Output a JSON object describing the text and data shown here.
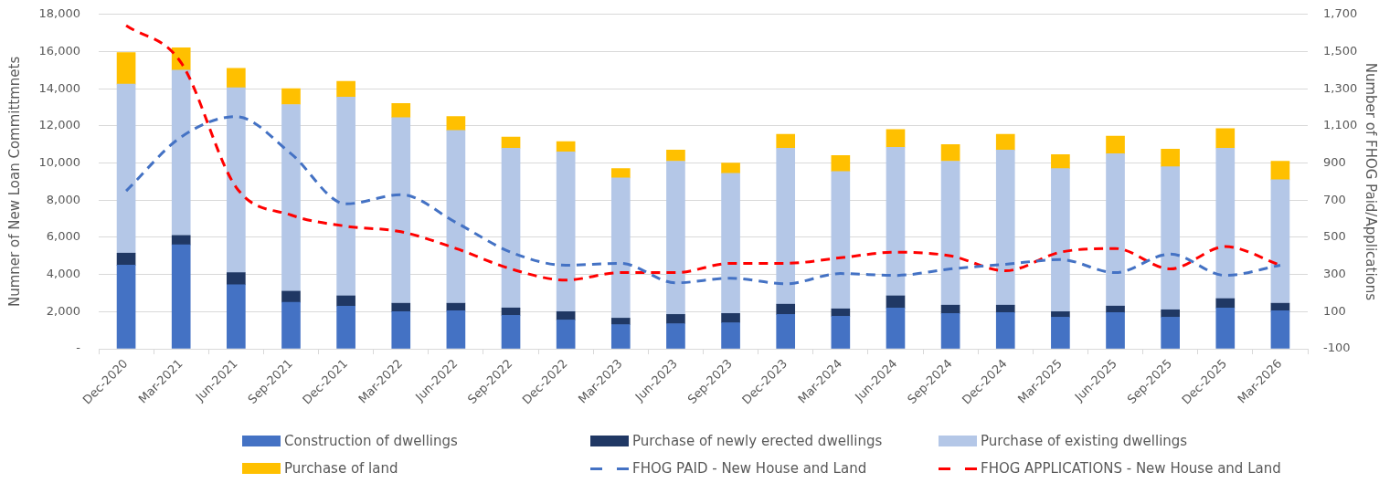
{
  "chart_data": {
    "type": "bar",
    "stacked": true,
    "categories": [
      "Dec-2020",
      "Mar-2021",
      "Jun-2021",
      "Sep-2021",
      "Dec-2021",
      "Mar-2022",
      "Jun-2022",
      "Sep-2022",
      "Dec-2022",
      "Mar-2023",
      "Jun-2023",
      "Sep-2023",
      "Dec-2023",
      "Mar-2024",
      "Jun-2024",
      "Sep-2024",
      "Dec-2024",
      "Mar-2025",
      "Jun-2025",
      "Sep-2025",
      "Dec-2025",
      "Mar-2026"
    ],
    "series": [
      {
        "name": "Construction of dwellings",
        "color": "#4472c4",
        "values": [
          4500,
          5600,
          3450,
          2500,
          2300,
          2000,
          2050,
          1800,
          1550,
          1300,
          1350,
          1400,
          1850,
          1750,
          2200,
          1900,
          1950,
          1700,
          1950,
          1700,
          2200,
          2050
        ]
      },
      {
        "name": "Purchase of newly erected dwellings",
        "color": "#203864",
        "values": [
          650,
          500,
          650,
          600,
          550,
          450,
          400,
          400,
          450,
          350,
          500,
          500,
          550,
          400,
          650,
          450,
          400,
          300,
          350,
          400,
          500,
          400
        ]
      },
      {
        "name": "Purchase of existing dwellings",
        "color": "#b4c7e7",
        "values": [
          9100,
          8900,
          9950,
          10050,
          10700,
          10000,
          9300,
          8600,
          8600,
          7550,
          8250,
          7550,
          8400,
          7400,
          8000,
          7750,
          8350,
          7700,
          8200,
          7700,
          8100,
          6650
        ]
      },
      {
        "name": "Purchase of land",
        "color": "#ffc000",
        "values": [
          1700,
          1200,
          1050,
          850,
          850,
          750,
          750,
          600,
          550,
          500,
          600,
          550,
          750,
          850,
          950,
          900,
          850,
          750,
          950,
          950,
          1050,
          1000
        ]
      },
      {
        "name": "FHOG PAID - New House and Land",
        "type": "line",
        "axis": "y2",
        "line_style": "dashed",
        "color": "#4472c4",
        "values": [
          750,
          1040,
          1150,
          950,
          680,
          730,
          580,
          420,
          350,
          360,
          255,
          280,
          250,
          305,
          295,
          330,
          355,
          380,
          310,
          410,
          295,
          350
        ]
      },
      {
        "name": "FHOG APPLICATIONS - New House and Land",
        "type": "line",
        "axis": "y2",
        "line_style": "dashed",
        "color": "#ff0000",
        "values": [
          1640,
          1440,
          770,
          620,
          560,
          530,
          440,
          330,
          270,
          310,
          310,
          360,
          360,
          390,
          420,
          400,
          320,
          420,
          440,
          330,
          450,
          350
        ]
      }
    ],
    "ylabel": "Numner of New Loan Committmnets",
    "y2label": "Number of FHOG Paid/Applications",
    "ylim": [
      0,
      18000
    ],
    "yticks": [
      {
        "value": 0,
        "label": "-"
      },
      {
        "value": 2000,
        "label": "2,000"
      },
      {
        "value": 4000,
        "label": "4,000"
      },
      {
        "value": 6000,
        "label": "6,000"
      },
      {
        "value": 8000,
        "label": "8,000"
      },
      {
        "value": 10000,
        "label": "10,000"
      },
      {
        "value": 12000,
        "label": "12,000"
      },
      {
        "value": 14000,
        "label": "14,000"
      },
      {
        "value": 16000,
        "label": "16,000"
      },
      {
        "value": 18000,
        "label": "18,000"
      }
    ],
    "y2lim": [
      -100,
      1700
    ],
    "y2ticks": [
      -100,
      100,
      300,
      500,
      700,
      900,
      {
        "value": 1100,
        "label": "1,100"
      },
      {
        "value": 1300,
        "label": "1,300"
      },
      {
        "value": 1500,
        "label": "1,500"
      },
      {
        "value": 1700,
        "label": "1,700"
      }
    ],
    "grid": "y",
    "legend": "bottom"
  }
}
